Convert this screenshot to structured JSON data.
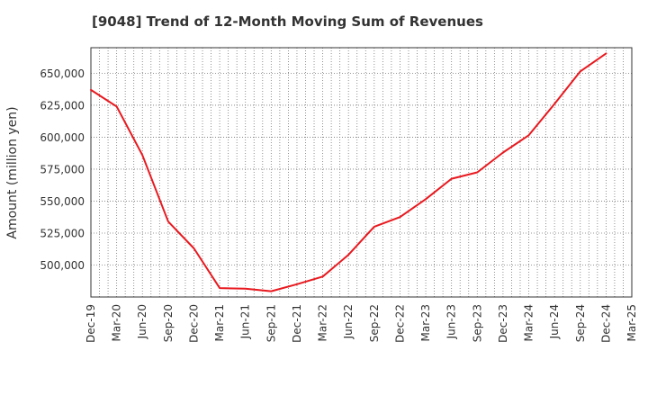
{
  "chart_data": {
    "type": "line",
    "title": "[9048]  Trend of 12-Month Moving Sum of Revenues",
    "xlabel": "",
    "ylabel": "Amount (million yen)",
    "x_ticks": [
      "Dec-19",
      "Mar-20",
      "Jun-20",
      "Sep-20",
      "Dec-20",
      "Mar-21",
      "Jun-21",
      "Sep-21",
      "Dec-21",
      "Mar-22",
      "Jun-22",
      "Sep-22",
      "Dec-22",
      "Mar-23",
      "Jun-23",
      "Sep-23",
      "Dec-23",
      "Mar-24",
      "Jun-24",
      "Sep-24",
      "Dec-24",
      "Mar-25"
    ],
    "y_ticks": [
      "500,000",
      "525,000",
      "550,000",
      "575,000",
      "600,000",
      "625,000",
      "650,000"
    ],
    "y_tick_values": [
      500000,
      525000,
      550000,
      575000,
      600000,
      625000,
      650000
    ],
    "ylim": [
      475000,
      670000
    ],
    "grid": true,
    "series": [
      {
        "color": "#e8191f",
        "x": [
          "Dec-19",
          "Mar-20",
          "Jun-20",
          "Sep-20",
          "Dec-20",
          "Mar-21",
          "Jun-21",
          "Sep-21",
          "Dec-21",
          "Mar-22",
          "Jun-22",
          "Sep-22",
          "Dec-22",
          "Mar-23",
          "Jun-23",
          "Sep-23",
          "Dec-23",
          "Mar-24",
          "Jun-24",
          "Sep-24",
          "Dec-24"
        ],
        "values": [
          637000,
          624000,
          586000,
          534000,
          513000,
          482000,
          481500,
          479500,
          485000,
          491000,
          508000,
          530000,
          537500,
          551500,
          567500,
          572500,
          588000,
          601500,
          626000,
          651500,
          665500
        ]
      }
    ]
  }
}
